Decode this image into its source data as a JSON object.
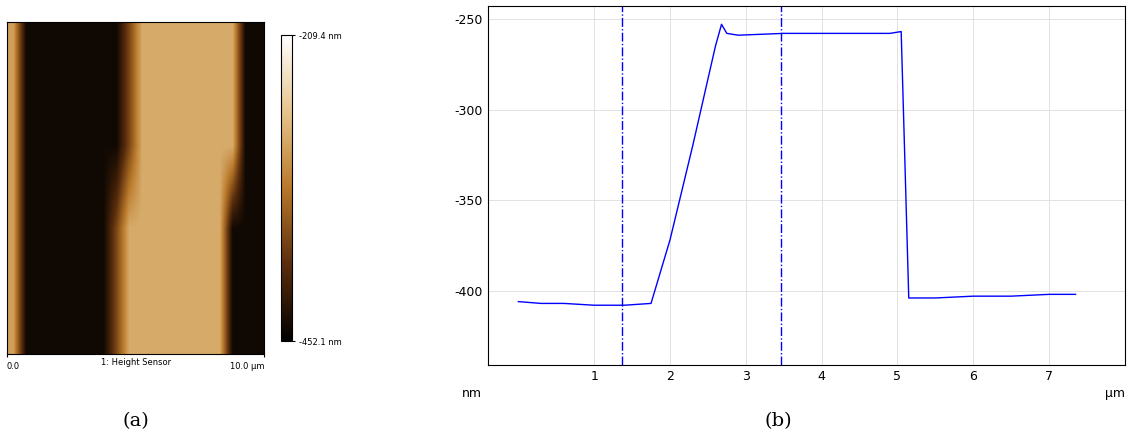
{
  "chart_data": [
    {
      "type": "heatmap",
      "caption": "(a)",
      "xlabel": "1: Height Sensor",
      "xlim": [
        0,
        10
      ],
      "ylim": [
        0,
        10
      ],
      "xticks": [
        {
          "value": 0,
          "label": "0.0"
        },
        {
          "value": 10,
          "label": "10.0 µm"
        }
      ],
      "tick_labels": "x",
      "cells": [
        [
          -300,
          -440,
          -440,
          -440,
          -440,
          -440,
          -440,
          -440,
          -440,
          -370,
          -290,
          -290,
          -290,
          -290,
          -290,
          -290,
          -290,
          -290,
          -440,
          -440
        ],
        [
          -300,
          -440,
          -440,
          -440,
          -440,
          -440,
          -440,
          -440,
          -440,
          -370,
          -290,
          -290,
          -290,
          -290,
          -290,
          -290,
          -290,
          -290,
          -440,
          -440
        ],
        [
          -300,
          -440,
          -440,
          -440,
          -440,
          -440,
          -440,
          -440,
          -370,
          -290,
          -290,
          -290,
          -290,
          -290,
          -290,
          -290,
          -290,
          -440,
          -440,
          -440
        ],
        [
          -300,
          -440,
          -440,
          -440,
          -440,
          -440,
          -440,
          -440,
          -370,
          -290,
          -290,
          -290,
          -290,
          -290,
          -290,
          -290,
          -290,
          -440,
          -440,
          -440
        ]
      ],
      "colorbar_range": [
        -452.1,
        -209.4
      ],
      "colorbar_ticks": [
        {
          "value": -452.1,
          "label": "-452.1 nm"
        },
        {
          "value": -209.4,
          "label": "-209.4 nm"
        }
      ]
    },
    {
      "type": "line",
      "caption": "(b)",
      "xlabel": "µm",
      "ylabel": "nm",
      "x": [
        0,
        0.3,
        0.6,
        1.0,
        1.4,
        1.75,
        2.0,
        2.3,
        2.6,
        2.68,
        2.75,
        2.9,
        3.5,
        4.2,
        4.9,
        5.05,
        5.1,
        5.15,
        5.5,
        6.0,
        6.5,
        7.0,
        7.35
      ],
      "values": [
        -406,
        -407,
        -407,
        -408,
        -408,
        -407,
        -372,
        -320,
        -265,
        -253,
        -258,
        -259,
        -258,
        -258,
        -258,
        -257,
        -330,
        -404,
        -404,
        -403,
        -403,
        -402,
        -402
      ],
      "color": "#0000ff",
      "cursors": [
        1.37,
        3.47
      ],
      "xlim": [
        -0.4,
        8.0
      ],
      "ylim": [
        -441,
        -243
      ],
      "xticks": [
        1,
        2,
        3,
        4,
        5,
        6,
        7
      ],
      "yticks": [
        -400,
        -350,
        -300,
        -250
      ],
      "grid": true
    }
  ]
}
